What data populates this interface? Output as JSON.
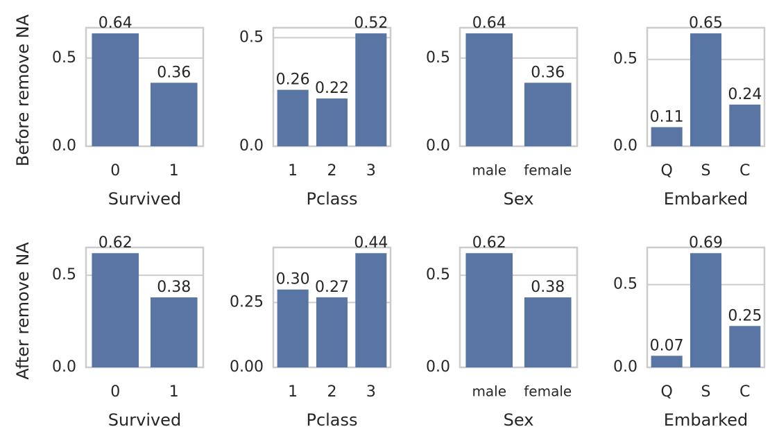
{
  "chart_data": [
    {
      "type": "bar",
      "ylabel": "Before remove NA",
      "xlabel": "Survived",
      "categories": [
        "0",
        "1"
      ],
      "values": [
        0.64,
        0.36
      ],
      "color": "#5975a4",
      "ylim": [
        0,
        0.672
      ],
      "yticks": [
        {
          "value": 0,
          "label": "0.0"
        },
        0.5
      ],
      "grid": true
    },
    {
      "type": "bar",
      "xlabel": "Pclass",
      "categories": [
        "1",
        "2",
        "3"
      ],
      "values": [
        0.26,
        0.22,
        0.52
      ],
      "color": "#5975a4",
      "ylim": [
        0,
        0.546
      ],
      "yticks": [
        {
          "value": 0,
          "label": "0.0"
        },
        0.5
      ],
      "grid": true
    },
    {
      "type": "bar",
      "xlabel": "Sex",
      "categories": [
        "male",
        "female"
      ],
      "values": [
        0.64,
        0.36
      ],
      "color": "#5975a4",
      "ylim": [
        0,
        0.672
      ],
      "yticks": [
        {
          "value": 0,
          "label": "0.0"
        },
        0.5
      ],
      "grid": true
    },
    {
      "type": "bar",
      "xlabel": "Embarked",
      "categories": [
        "Q",
        "S",
        "C"
      ],
      "values": [
        0.11,
        0.65,
        0.24
      ],
      "color": "#5975a4",
      "ylim": [
        0,
        0.6825
      ],
      "yticks": [
        {
          "value": 0,
          "label": "0.0"
        },
        0.5
      ],
      "grid": true
    },
    {
      "type": "bar",
      "ylabel": "After remove NA",
      "xlabel": "Survived",
      "categories": [
        "0",
        "1"
      ],
      "values": [
        0.62,
        0.38
      ],
      "color": "#5975a4",
      "ylim": [
        0,
        0.651
      ],
      "yticks": [
        {
          "value": 0,
          "label": "0.0"
        },
        0.5
      ],
      "grid": true
    },
    {
      "type": "bar",
      "xlabel": "Pclass",
      "categories": [
        "1",
        "2",
        "3"
      ],
      "values": [
        0.3,
        0.27,
        0.44
      ],
      "value_labels": [
        "0.30",
        "0.27",
        "0.44"
      ],
      "color": "#5975a4",
      "ylim": [
        0,
        0.462
      ],
      "yticks": [
        {
          "value": 0,
          "label": "0.00"
        },
        0.25
      ],
      "grid": true
    },
    {
      "type": "bar",
      "xlabel": "Sex",
      "categories": [
        "male",
        "female"
      ],
      "values": [
        0.62,
        0.38
      ],
      "color": "#5975a4",
      "ylim": [
        0,
        0.651
      ],
      "yticks": [
        {
          "value": 0,
          "label": "0.0"
        },
        0.5
      ],
      "grid": true
    },
    {
      "type": "bar",
      "xlabel": "Embarked",
      "categories": [
        "Q",
        "S",
        "C"
      ],
      "values": [
        0.07,
        0.69,
        0.25
      ],
      "color": "#5975a4",
      "ylim": [
        0,
        0.7245
      ],
      "yticks": [
        {
          "value": 0,
          "label": "0.0"
        },
        0.5
      ],
      "grid": true
    }
  ]
}
